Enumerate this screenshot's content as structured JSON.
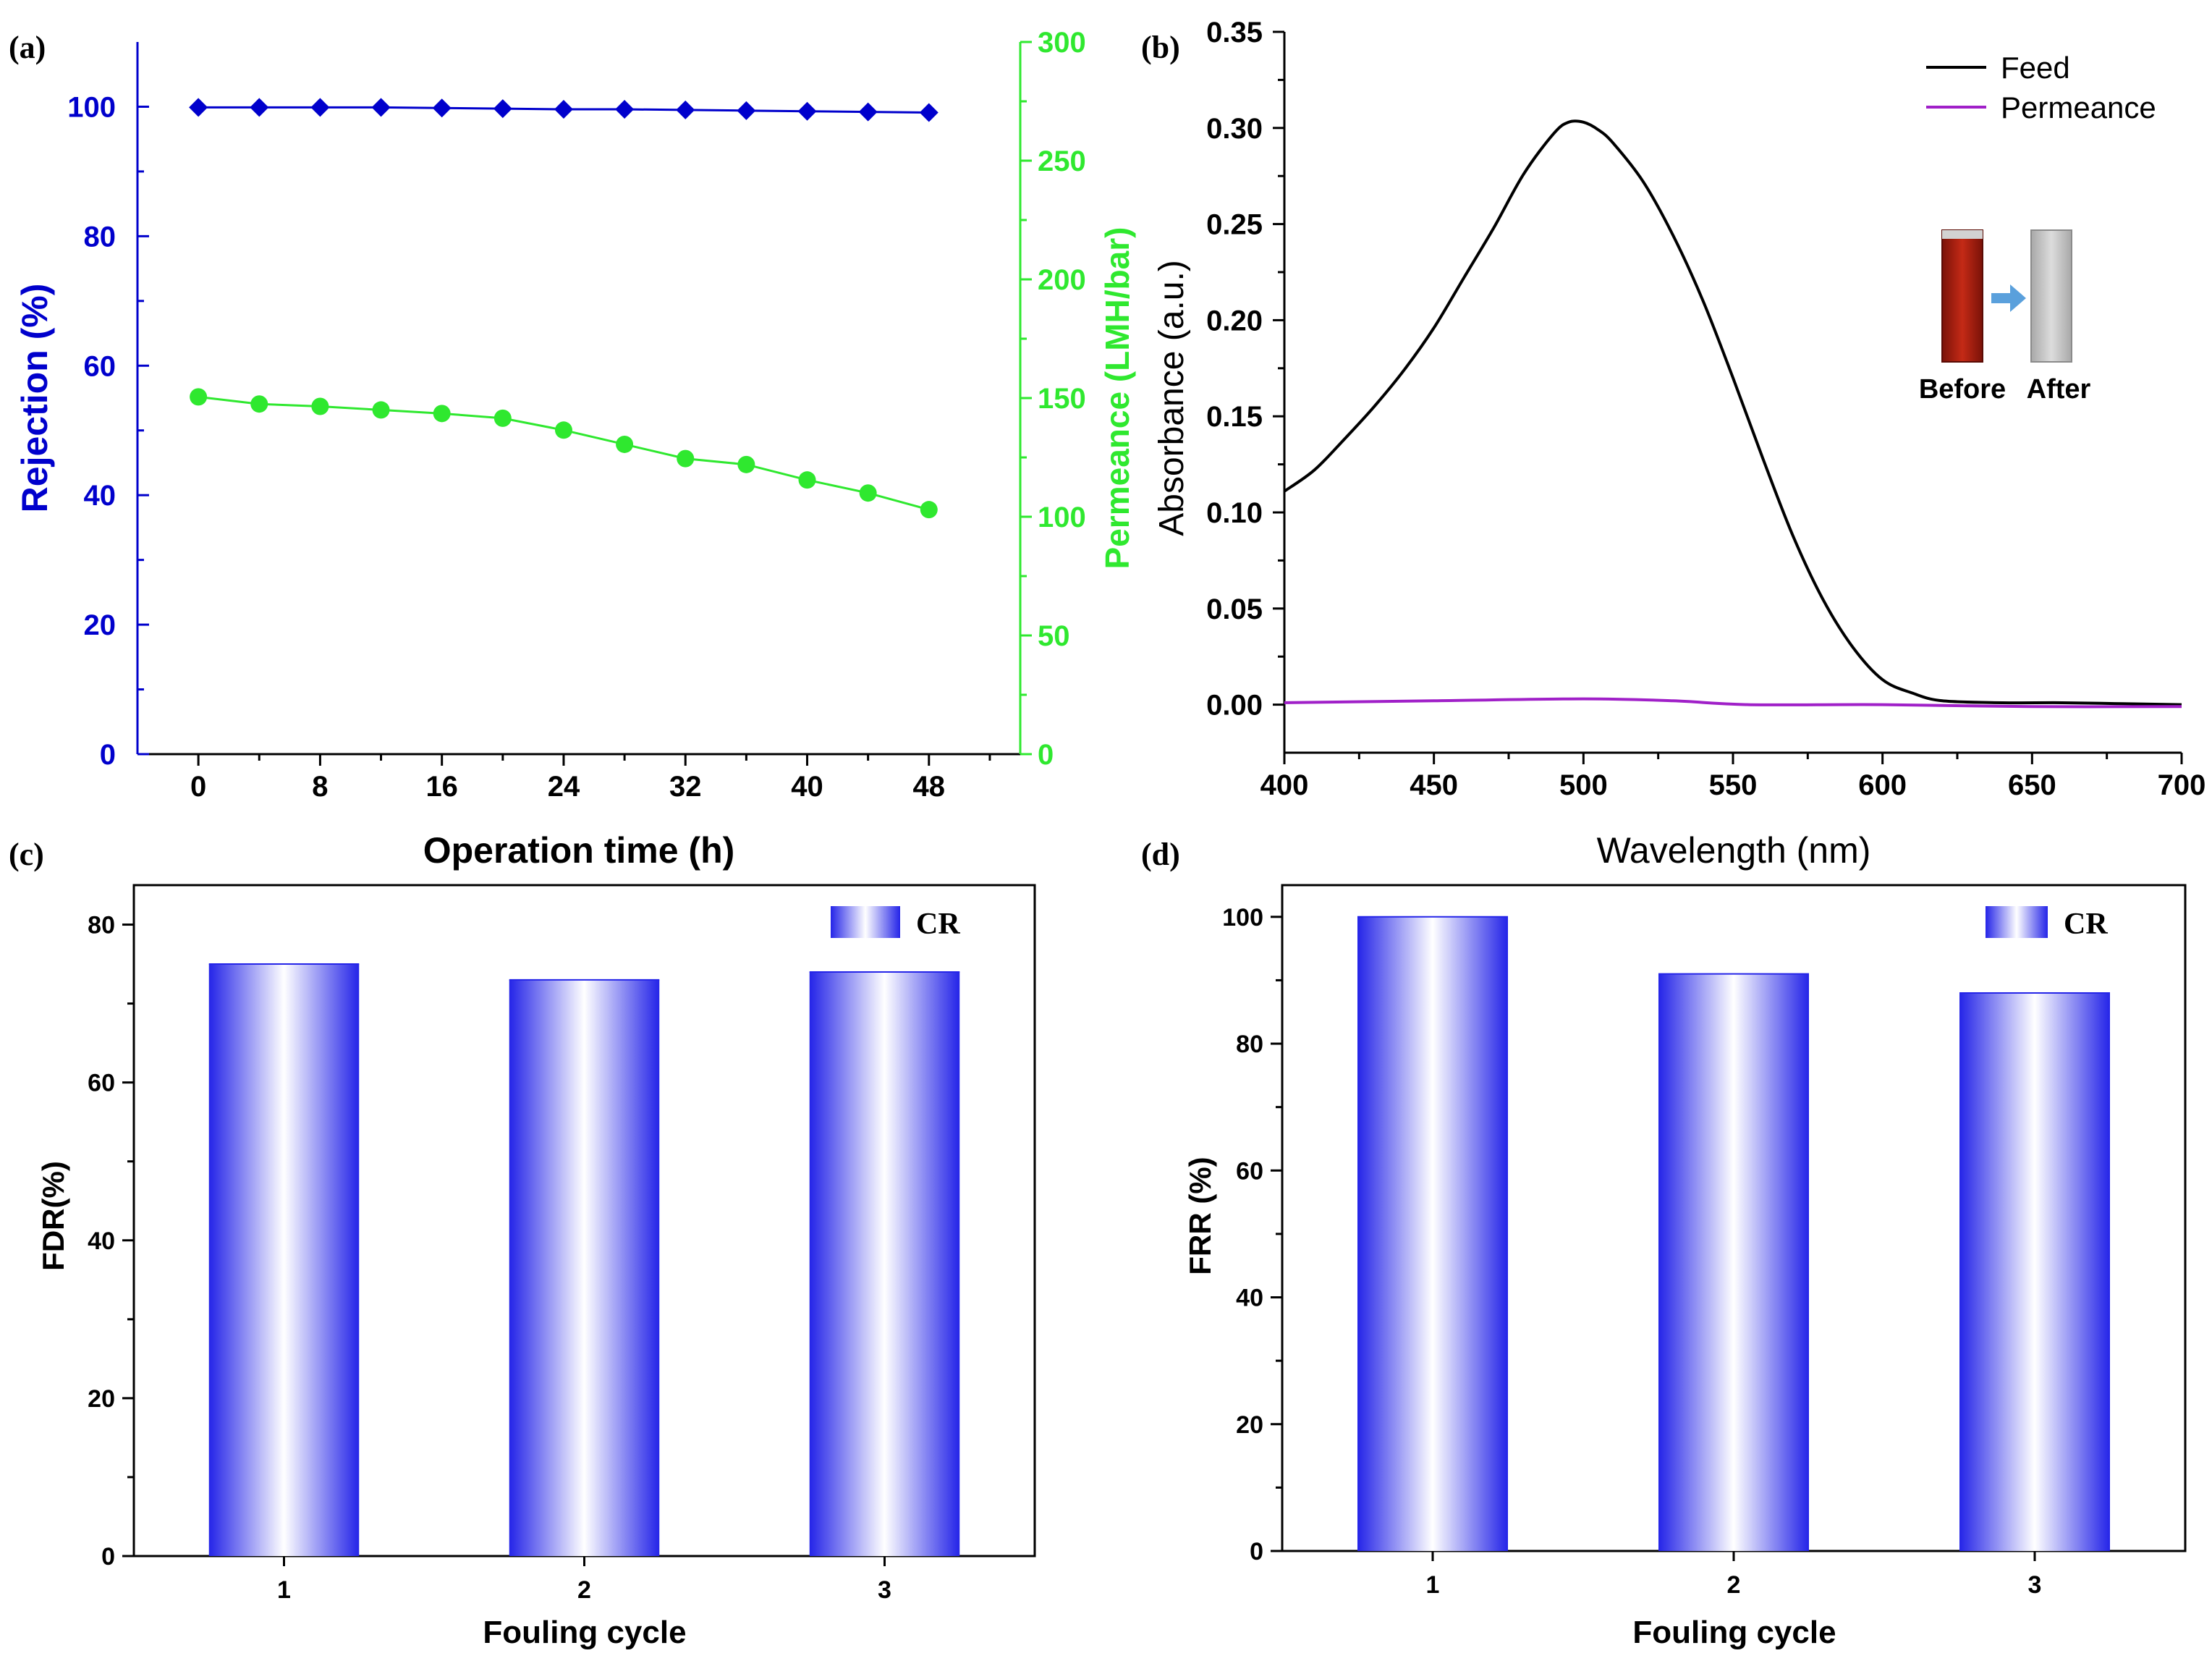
{
  "colors": {
    "blue": "#0000cc",
    "green": "#2fe82f",
    "black": "#000000",
    "purple": "#a020c8",
    "bar_dark": "#2424e8",
    "cuvette_red": "#b02012",
    "cuvette_clear": "#c8c8c8",
    "arrow": "#5aa0dc"
  },
  "chart_data": [
    {
      "panel_label": "(a)",
      "type": "line",
      "title": "",
      "xlabel": "Operation time (h)",
      "ylabel": "Rejection (%)",
      "y2label": "Permeance (LMH/bar)",
      "xlim": [
        -4,
        54
      ],
      "ylim": [
        0,
        110
      ],
      "y2lim": [
        0,
        300
      ],
      "x_ticks": [
        "0",
        "8",
        "16",
        "24",
        "32",
        "40",
        "48"
      ],
      "x_tick_values": [
        0,
        8,
        16,
        24,
        32,
        40,
        48
      ],
      "y_ticks": [
        "0",
        "20",
        "40",
        "60",
        "80",
        "100"
      ],
      "y_tick_values": [
        0,
        20,
        40,
        60,
        80,
        100
      ],
      "y2_ticks": [
        "0",
        "50",
        "100",
        "150",
        "200",
        "250",
        "300"
      ],
      "y2_tick_values": [
        0,
        50,
        100,
        150,
        200,
        250,
        300
      ],
      "x": [
        0,
        4,
        8,
        12,
        16,
        20,
        24,
        28,
        32,
        36,
        40,
        44,
        48
      ],
      "series": [
        {
          "name": "Rejection",
          "axis": "left",
          "marker": "diamond",
          "values": [
            99.9,
            99.9,
            99.9,
            99.9,
            99.8,
            99.7,
            99.6,
            99.6,
            99.5,
            99.4,
            99.3,
            99.2,
            99.1
          ]
        },
        {
          "name": "Permeance",
          "axis": "right",
          "marker": "circle",
          "values": [
            150.5,
            147.5,
            146.5,
            145,
            143.5,
            141.5,
            136.5,
            130.5,
            124.5,
            122,
            115.5,
            110,
            103
          ]
        }
      ]
    },
    {
      "panel_label": "(b)",
      "type": "line",
      "title": "",
      "xlabel": "Wavelength (nm)",
      "ylabel": "Absorbance (a.u.)",
      "xlim": [
        400,
        700
      ],
      "ylim": [
        -0.025,
        0.35
      ],
      "x_ticks": [
        "400",
        "450",
        "500",
        "550",
        "600",
        "650",
        "700"
      ],
      "x_tick_values": [
        400,
        450,
        500,
        550,
        600,
        650,
        700
      ],
      "y_ticks": [
        "0.00",
        "0.05",
        "0.10",
        "0.15",
        "0.20",
        "0.25",
        "0.30",
        "0.35"
      ],
      "y_tick_values": [
        0,
        0.05,
        0.1,
        0.15,
        0.2,
        0.25,
        0.3,
        0.35
      ],
      "legend": [
        "Feed",
        "Permeance"
      ],
      "legend_position": "top-right",
      "inset_labels": [
        "Before",
        "After"
      ],
      "series": [
        {
          "name": "Feed",
          "x": [
            400,
            410,
            420,
            430,
            440,
            450,
            460,
            470,
            480,
            490,
            495,
            500,
            505,
            510,
            520,
            530,
            540,
            550,
            560,
            570,
            580,
            590,
            600,
            610,
            620,
            640,
            660,
            680,
            700
          ],
          "values": [
            0.111,
            0.122,
            0.138,
            0.155,
            0.174,
            0.196,
            0.222,
            0.248,
            0.276,
            0.297,
            0.303,
            0.303,
            0.299,
            0.292,
            0.272,
            0.244,
            0.21,
            0.17,
            0.128,
            0.088,
            0.055,
            0.03,
            0.013,
            0.006,
            0.002,
            0.001,
            0.001,
            0.0005,
            0.0
          ]
        },
        {
          "name": "Permeance",
          "x": [
            400,
            450,
            500,
            530,
            555,
            600,
            650,
            700
          ],
          "values": [
            0.001,
            0.002,
            0.003,
            0.002,
            0.0,
            0.0,
            -0.001,
            -0.001
          ]
        }
      ]
    },
    {
      "panel_label": "(c)",
      "type": "bar",
      "title": "",
      "xlabel": "Fouling cycle",
      "ylabel": "FDR(%)",
      "categories": [
        "1",
        "2",
        "3"
      ],
      "values": [
        75,
        73,
        74
      ],
      "ylim": [
        0,
        85
      ],
      "y_ticks": [
        "0",
        "20",
        "40",
        "60",
        "80"
      ],
      "y_tick_values": [
        0,
        20,
        40,
        60,
        80
      ],
      "legend": [
        "CR"
      ],
      "legend_position": "top-right"
    },
    {
      "panel_label": "(d)",
      "type": "bar",
      "title": "",
      "xlabel": "Fouling cycle",
      "ylabel": "FRR (%)",
      "categories": [
        "1",
        "2",
        "3"
      ],
      "values": [
        100,
        91,
        88
      ],
      "ylim": [
        0,
        105
      ],
      "y_ticks": [
        "0",
        "20",
        "40",
        "60",
        "80",
        "100"
      ],
      "y_tick_values": [
        0,
        20,
        40,
        60,
        80,
        100
      ],
      "legend": [
        "CR"
      ],
      "legend_position": "top-right"
    }
  ]
}
